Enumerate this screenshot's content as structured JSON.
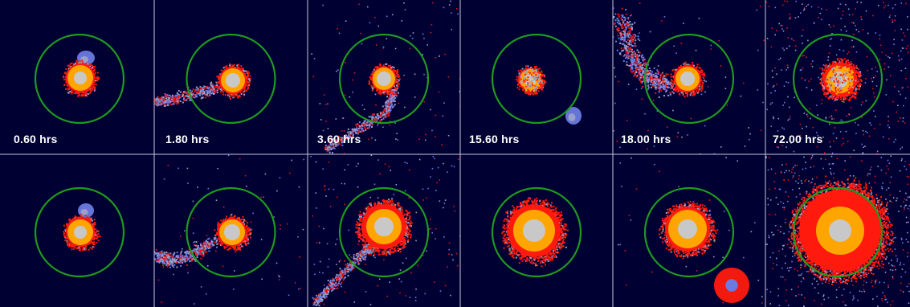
{
  "figure": {
    "rows": 2,
    "columns": 6,
    "time_labels": [
      "0.60 hrs",
      "1.80 hrs",
      "3.60 hrs",
      "15.60 hrs",
      "18.00 hrs",
      "72.00 hrs"
    ]
  },
  "colors": {
    "background": "#000033",
    "grid_line": "#c8c8d8",
    "ring": "#1f9a1f",
    "core": "#c8c8c8",
    "inner": "#ffa500",
    "outer": "#ff1a0d",
    "tail_red": "#e01414",
    "tail_blue": "#6a7ae0",
    "tail_light": "#9aa0c8"
  },
  "panels": [
    {
      "row": 1,
      "column": 1,
      "time": "0.60 hrs",
      "state": "companion-blob-above-core",
      "core": "compact",
      "tail": "none"
    },
    {
      "row": 1,
      "column": 2,
      "time": "1.80 hrs",
      "state": "tidal-tail-left",
      "core": "compact",
      "tail": "left"
    },
    {
      "row": 1,
      "column": 3,
      "time": "3.60 hrs",
      "state": "tidal-tail-down-left",
      "core": "compact",
      "tail": "down-left"
    },
    {
      "row": 1,
      "column": 4,
      "time": "15.60 hrs",
      "state": "small-blob-lower-right",
      "core": "speckled",
      "tail": "none"
    },
    {
      "row": 1,
      "column": 5,
      "time": "18.00 hrs",
      "state": "debris-upper-left",
      "core": "compact",
      "tail": "upper-left"
    },
    {
      "row": 1,
      "column": 6,
      "time": "72.00 hrs",
      "state": "settled-halo",
      "core": "speckled",
      "tail": "scattered"
    },
    {
      "row": 2,
      "column": 1,
      "time": "",
      "state": "companion-blob-above-core",
      "core": "compact",
      "tail": "none"
    },
    {
      "row": 2,
      "column": 2,
      "time": "",
      "state": "tidal-tail-left",
      "core": "compact",
      "tail": "left"
    },
    {
      "row": 2,
      "column": 3,
      "time": "",
      "state": "tidal-tail-down-left",
      "core": "large",
      "tail": "down-left"
    },
    {
      "row": 2,
      "column": 4,
      "time": "",
      "state": "round-halo",
      "core": "large",
      "tail": "none"
    },
    {
      "row": 2,
      "column": 5,
      "time": "",
      "state": "ejected-blob-lower-right",
      "core": "large",
      "tail": "lower-right"
    },
    {
      "row": 2,
      "column": 6,
      "time": "",
      "state": "extended-halo",
      "core": "large",
      "tail": "scattered"
    }
  ]
}
